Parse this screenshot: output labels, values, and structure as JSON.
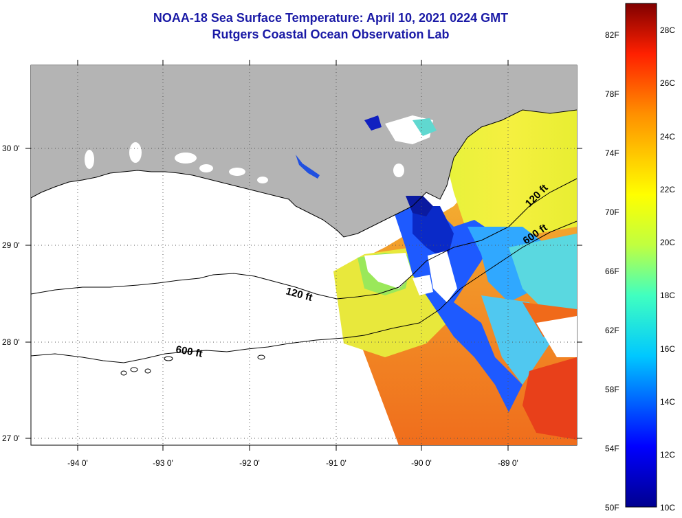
{
  "title": {
    "line1": "NOAA-18 Sea Surface Temperature:  April 10, 2021 0224 GMT",
    "line2": "Rutgers Coastal Ocean Observation Lab"
  },
  "axes": {
    "lon_labels": [
      "-94 0'",
      "-93 0'",
      "-92 0'",
      "-91 0'",
      "-90 0'",
      "-89 0'"
    ],
    "lat_labels": [
      "30 0'",
      "29 0'",
      "28 0'",
      "27 0'"
    ]
  },
  "contours": {
    "shelf_label_1": "120 ft",
    "shelf_label_2": "600 ft",
    "east_label_1": "120 ft",
    "east_label_2": "600 ft"
  },
  "colorbar": {
    "fahrenheit": [
      "82F",
      "78F",
      "74F",
      "70F",
      "66F",
      "62F",
      "58F",
      "54F",
      "50F"
    ],
    "celsius": [
      "28C",
      "26C",
      "24C",
      "22C",
      "20C",
      "18C",
      "16C",
      "14C",
      "12C",
      "10C"
    ]
  },
  "colors": {
    "title": "#1a1aa6",
    "land": "#b4b4b4",
    "cold": "#0000a0",
    "warm": "#f07020",
    "hot": "#800000"
  }
}
